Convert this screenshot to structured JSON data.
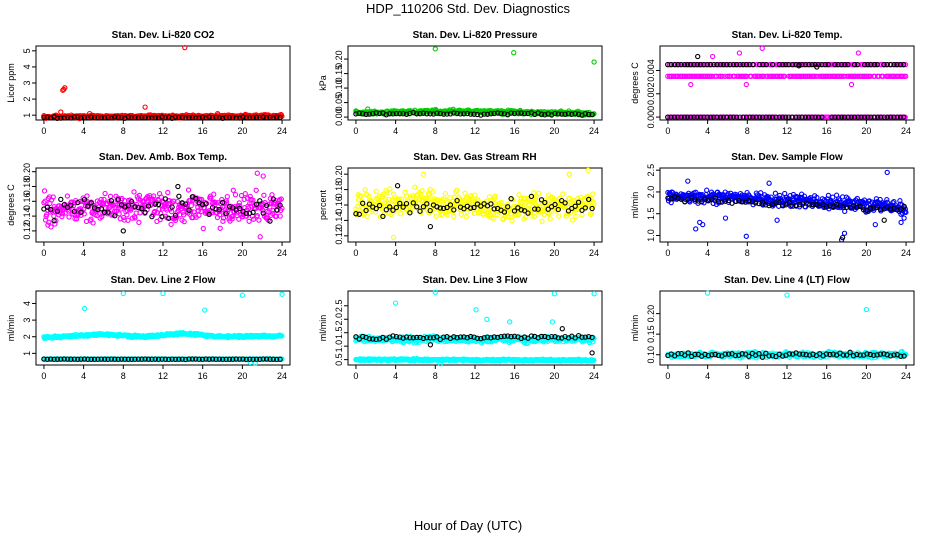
{
  "page": {
    "title": "HDP_110206  Std. Dev. Diagnostics",
    "x_axis_title": "Hour of Day (UTC)"
  },
  "colors": {
    "red": "#ff0000",
    "green": "#00cc00",
    "magenta": "#ff00ff",
    "yellow": "#ffff00",
    "blue": "#0000ff",
    "cyan": "#00ffff",
    "black": "#000000"
  },
  "chart_data": [
    {
      "type": "scatter",
      "title": "Stan. Dev. Li-820 CO2",
      "ylabel": "Licor ppm",
      "xlim": [
        -0.8,
        24.8
      ],
      "xticks": [
        0,
        4,
        8,
        12,
        16,
        20,
        24
      ],
      "ylim": [
        0.7,
        5.3
      ],
      "yticks": [
        1,
        2,
        3,
        4,
        5
      ],
      "ytick_labels": [
        "1",
        "2",
        "3",
        "4",
        "5"
      ],
      "series": [
        {
          "name": "main",
          "color": "red",
          "baseline": [
            {
              "h": 0,
              "v": 0.9
            },
            {
              "h": 24,
              "v": 0.95
            }
          ],
          "noise": 0.08,
          "extra": [
            [
              2.0,
              2.6
            ],
            [
              2.1,
              2.7
            ],
            [
              1.9,
              2.55
            ],
            [
              1.7,
              1.2
            ],
            [
              10.2,
              1.5
            ],
            [
              14.2,
              5.2
            ],
            [
              4.6,
              1.1
            ],
            [
              17.5,
              1.1
            ],
            [
              20.3,
              1.05
            ]
          ]
        },
        {
          "name": "overlay",
          "color": "black",
          "baseline": [
            {
              "h": 0,
              "v": 0.85
            },
            {
              "h": 24,
              "v": 0.85
            }
          ],
          "noise": 0.04,
          "extra": []
        }
      ]
    },
    {
      "type": "scatter",
      "title": "Stan. Dev. Li-820 Pressure",
      "ylabel": "kPa",
      "xlim": [
        -0.8,
        24.8
      ],
      "xticks": [
        0,
        4,
        8,
        12,
        16,
        20,
        24
      ],
      "ylim": [
        -0.01,
        0.245
      ],
      "yticks": [
        0.0,
        0.05,
        0.1,
        0.15,
        0.2
      ],
      "ytick_labels": [
        "0.00",
        "0.05",
        "0.10",
        "0.15",
        "0.20"
      ],
      "series": [
        {
          "name": "main",
          "color": "green",
          "baseline": [
            {
              "h": 0,
              "v": 0.015
            },
            {
              "h": 10,
              "v": 0.02
            },
            {
              "h": 24,
              "v": 0.012
            }
          ],
          "noise": 0.006,
          "extra": [
            [
              8.0,
              0.235
            ],
            [
              15.9,
              0.222
            ],
            [
              24.0,
              0.19
            ],
            [
              1.2,
              0.028
            ],
            [
              9.8,
              0.027
            ]
          ]
        },
        {
          "name": "overlay",
          "color": "black",
          "baseline": [
            {
              "h": 0,
              "v": 0.012
            },
            {
              "h": 24,
              "v": 0.01
            }
          ],
          "noise": 0.004,
          "extra": []
        }
      ]
    },
    {
      "type": "scatter",
      "title": "Stan. Dev. Li-820 Temp.",
      "ylabel": "degrees C",
      "xlim": [
        -0.8,
        24.8
      ],
      "xticks": [
        0,
        4,
        8,
        12,
        16,
        20,
        24
      ],
      "ylim": [
        -0.00025,
        0.0061
      ],
      "yticks": [
        0.0,
        0.002,
        0.004
      ],
      "ytick_labels": [
        "0.000",
        "0.002",
        "0.004"
      ],
      "series": [
        {
          "name": "main",
          "color": "magenta",
          "levels": [
            0.0,
            0.0035,
            0.0045
          ],
          "extra": [
            [
              9.5,
              0.0059
            ],
            [
              7.2,
              0.0055
            ],
            [
              19.2,
              0.0055
            ],
            [
              2.3,
              0.0028
            ],
            [
              7.9,
              0.0028
            ],
            [
              18.5,
              0.0028
            ],
            [
              4.5,
              0.0052
            ]
          ]
        },
        {
          "name": "overlay",
          "color": "black",
          "levels": [
            0.0,
            0.0045
          ],
          "extra": [
            [
              3.0,
              0.0052
            ],
            [
              15.0,
              0.0043
            ],
            [
              13.2,
              0.0044
            ]
          ]
        }
      ]
    },
    {
      "type": "scatter",
      "title": "Stan. Dev. Amb. Box Temp.",
      "ylabel": "degrees C",
      "xlim": [
        -0.8,
        24.8
      ],
      "xticks": [
        0,
        4,
        8,
        12,
        16,
        20,
        24
      ],
      "ylim": [
        0.105,
        0.205
      ],
      "yticks": [
        0.12,
        0.14,
        0.16,
        0.18,
        0.2
      ],
      "ytick_labels": [
        "0.12",
        "0.14",
        "0.16",
        "0.18",
        "0.20"
      ],
      "series": [
        {
          "name": "main",
          "color": "magenta",
          "baseline": [
            {
              "h": 0,
              "v": 0.15
            },
            {
              "h": 24,
              "v": 0.152
            }
          ],
          "noise": 0.02,
          "extra": [
            [
              21.5,
              0.198
            ],
            [
              22.1,
              0.194
            ],
            [
              0.4,
              0.128
            ],
            [
              21.8,
              0.112
            ]
          ]
        },
        {
          "name": "overlay",
          "color": "black",
          "baseline": [
            {
              "h": 0,
              "v": 0.15
            },
            {
              "h": 24,
              "v": 0.15
            }
          ],
          "noise": 0.015,
          "extra": [
            [
              8.0,
              0.12
            ],
            [
              13.5,
              0.18
            ]
          ]
        }
      ]
    },
    {
      "type": "scatter",
      "title": "Stan. Dev. Gas Stream RH",
      "ylabel": "percent",
      "xlim": [
        -0.8,
        24.8
      ],
      "xticks": [
        0,
        4,
        8,
        12,
        16,
        20,
        24
      ],
      "ylim": [
        0.112,
        0.208
      ],
      "yticks": [
        0.12,
        0.14,
        0.16,
        0.18,
        0.2
      ],
      "ytick_labels": [
        "0.12",
        "0.14",
        "0.16",
        "0.18",
        "0.20"
      ],
      "series": [
        {
          "name": "main",
          "color": "yellow",
          "baseline": [
            {
              "h": 0,
              "v": 0.16
            },
            {
              "h": 6,
              "v": 0.165
            },
            {
              "h": 16,
              "v": 0.155
            },
            {
              "h": 24,
              "v": 0.162
            }
          ],
          "noise": 0.016,
          "extra": [
            [
              3.8,
              0.118
            ],
            [
              6.8,
              0.2
            ],
            [
              21.5,
              0.2
            ],
            [
              23.4,
              0.205
            ]
          ]
        },
        {
          "name": "overlay",
          "color": "black",
          "baseline": [
            {
              "h": 0,
              "v": 0.158
            },
            {
              "h": 24,
              "v": 0.158
            }
          ],
          "noise": 0.012,
          "extra": [
            [
              4.2,
              0.185
            ],
            [
              7.5,
              0.132
            ]
          ]
        }
      ]
    },
    {
      "type": "scatter",
      "title": "Stan. Dev. Sample Flow",
      "ylabel": "ml/min",
      "xlim": [
        -0.8,
        24.8
      ],
      "xticks": [
        0,
        4,
        8,
        12,
        16,
        20,
        24
      ],
      "ylim": [
        0.85,
        2.55
      ],
      "yticks": [
        1.0,
        1.5,
        2.0,
        2.5
      ],
      "ytick_labels": [
        "1.0",
        "1.5",
        "2.0",
        "2.5"
      ],
      "series": [
        {
          "name": "main",
          "color": "blue",
          "baseline": [
            {
              "h": 0,
              "v": 1.9
            },
            {
              "h": 8,
              "v": 1.85
            },
            {
              "h": 16,
              "v": 1.75
            },
            {
              "h": 24,
              "v": 1.65
            }
          ],
          "noise": 0.14,
          "extra": [
            [
              2.8,
              1.15
            ],
            [
              3.2,
              1.3
            ],
            [
              3.5,
              1.25
            ],
            [
              7.9,
              0.98
            ],
            [
              11.0,
              1.35
            ],
            [
              17.5,
              0.9
            ],
            [
              17.8,
              1.05
            ],
            [
              20.9,
              1.25
            ],
            [
              22.1,
              2.45
            ],
            [
              23.5,
              1.3
            ],
            [
              23.8,
              1.4
            ],
            [
              2.0,
              2.25
            ],
            [
              10.2,
              2.2
            ],
            [
              5.8,
              1.4
            ]
          ]
        },
        {
          "name": "overlay",
          "color": "black",
          "baseline": [
            {
              "h": 0,
              "v": 1.85
            },
            {
              "h": 24,
              "v": 1.6
            }
          ],
          "noise": 0.06,
          "extra": [
            [
              17.6,
              0.95
            ],
            [
              21.8,
              1.35
            ]
          ]
        }
      ]
    },
    {
      "type": "scatter",
      "title": "Stan. Dev. Line 2 Flow",
      "ylabel": "ml/min",
      "xlim": [
        -0.8,
        24.8
      ],
      "xticks": [
        0,
        4,
        8,
        12,
        16,
        20,
        24
      ],
      "ylim": [
        0.3,
        4.75
      ],
      "yticks": [
        1,
        2,
        3,
        4
      ],
      "ytick_labels": [
        "1",
        "2",
        "3",
        "4"
      ],
      "series": [
        {
          "name": "main",
          "color": "cyan",
          "baseline": [
            {
              "h": 0,
              "v": 1.95
            },
            {
              "h": 6,
              "v": 2.15
            },
            {
              "h": 10,
              "v": 2.0
            },
            {
              "h": 14,
              "v": 2.2
            },
            {
              "h": 18,
              "v": 2.0
            },
            {
              "h": 24,
              "v": 2.05
            }
          ],
          "noise": 0.06,
          "extra": [
            [
              4.1,
              3.7
            ],
            [
              8.0,
              4.6
            ],
            [
              12.0,
              4.6
            ],
            [
              16.2,
              3.6
            ],
            [
              20.0,
              4.5
            ],
            [
              24.0,
              4.55
            ],
            [
              20.8,
              0.45
            ],
            [
              21.3,
              0.4
            ]
          ]
        },
        {
          "name": "main-low",
          "color": "cyan",
          "baseline": [
            {
              "h": 0,
              "v": 0.65
            },
            {
              "h": 24,
              "v": 0.65
            }
          ],
          "noise": 0.02,
          "extra": []
        },
        {
          "name": "overlay",
          "color": "black",
          "baseline": [
            {
              "h": 0,
              "v": 0.65
            },
            {
              "h": 24,
              "v": 0.65
            }
          ],
          "noise": 0.015,
          "extra": []
        }
      ]
    },
    {
      "type": "scatter",
      "title": "Stan. Dev. Line 3 Flow",
      "ylabel": "ml/min",
      "xlim": [
        -0.8,
        24.8
      ],
      "xticks": [
        0,
        4,
        8,
        12,
        16,
        20,
        24
      ],
      "ylim": [
        0.3,
        3.05
      ],
      "yticks": [
        0.5,
        1.0,
        1.5,
        2.0,
        2.5
      ],
      "ytick_labels": [
        "0.5",
        "1.0",
        "1.5",
        "2.0",
        "2.5"
      ],
      "series": [
        {
          "name": "main-low",
          "color": "cyan",
          "baseline": [
            {
              "h": 0,
              "v": 0.5
            },
            {
              "h": 24,
              "v": 0.48
            }
          ],
          "noise": 0.03,
          "extra": []
        },
        {
          "name": "main",
          "color": "cyan",
          "baseline": [
            {
              "h": 0,
              "v": 1.25
            },
            {
              "h": 24,
              "v": 1.25
            }
          ],
          "noise": 0.1,
          "extra": [
            [
              4.0,
              2.6
            ],
            [
              8.0,
              3.0
            ],
            [
              12.1,
              2.35
            ],
            [
              13.2,
              2.0
            ],
            [
              20.0,
              2.95
            ],
            [
              24.0,
              2.95
            ],
            [
              15.5,
              1.9
            ],
            [
              19.8,
              1.9
            ],
            [
              8.5,
              0.35
            ]
          ]
        },
        {
          "name": "overlay",
          "color": "black",
          "baseline": [
            {
              "h": 0,
              "v": 1.3
            },
            {
              "h": 24,
              "v": 1.35
            }
          ],
          "noise": 0.06,
          "extra": [
            [
              20.8,
              1.65
            ],
            [
              23.8,
              0.75
            ],
            [
              7.5,
              1.05
            ]
          ]
        }
      ]
    },
    {
      "type": "scatter",
      "title": "Stan. Dev. Line 4 (LT) Flow",
      "ylabel": "ml/min",
      "xlim": [
        -0.8,
        24.8
      ],
      "xticks": [
        0,
        4,
        8,
        12,
        16,
        20,
        24
      ],
      "ylim": [
        0.075,
        0.255
      ],
      "yticks": [
        0.1,
        0.15,
        0.2
      ],
      "ytick_labels": [
        "0.10",
        "0.15",
        "0.20"
      ],
      "series": [
        {
          "name": "main",
          "color": "cyan",
          "baseline": [
            {
              "h": 0,
              "v": 0.1
            },
            {
              "h": 24,
              "v": 0.1
            }
          ],
          "noise": 0.006,
          "extra": [
            [
              4.0,
              0.25
            ],
            [
              12.0,
              0.245
            ],
            [
              20.0,
              0.21
            ]
          ]
        },
        {
          "name": "overlay",
          "color": "black",
          "baseline": [
            {
              "h": 0,
              "v": 0.1
            },
            {
              "h": 24,
              "v": 0.1
            }
          ],
          "noise": 0.005,
          "extra": []
        }
      ]
    }
  ]
}
